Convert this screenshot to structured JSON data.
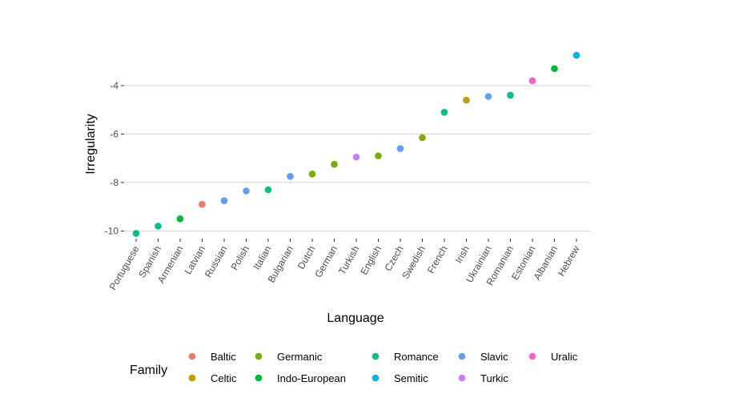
{
  "chart_data": {
    "type": "scatter",
    "xlabel": "Language",
    "ylabel": "Irregularity",
    "ylim": [
      -10.25,
      -2.55
    ],
    "yticks": [
      -10,
      -8,
      -6,
      -4
    ],
    "grid": "horizontal major",
    "legend_placement": "bottom",
    "legend_title": "Family",
    "families": [
      {
        "name": "Baltic",
        "color": "#F8766D"
      },
      {
        "name": "Celtic",
        "color": "#C49A00"
      },
      {
        "name": "Germanic",
        "color": "#7CAE00"
      },
      {
        "name": "Indo-European",
        "color": "#00BA38"
      },
      {
        "name": "Romance",
        "color": "#00C08B"
      },
      {
        "name": "Semitic",
        "color": "#00B4EF"
      },
      {
        "name": "Slavic",
        "color": "#619CFF"
      },
      {
        "name": "Turkic",
        "color": "#C77CFF"
      },
      {
        "name": "Uralic",
        "color": "#FF61C3"
      }
    ],
    "points": [
      {
        "language": "Portuguese",
        "family": "Romance",
        "irregularity": -10.1
      },
      {
        "language": "Spanish",
        "family": "Romance",
        "irregularity": -9.8
      },
      {
        "language": "Armenian",
        "family": "Indo-European",
        "irregularity": -9.5
      },
      {
        "language": "Latvian",
        "family": "Baltic",
        "irregularity": -8.9
      },
      {
        "language": "Russian",
        "family": "Slavic",
        "irregularity": -8.75
      },
      {
        "language": "Polish",
        "family": "Slavic",
        "irregularity": -8.35
      },
      {
        "language": "Italian",
        "family": "Romance",
        "irregularity": -8.3
      },
      {
        "language": "Bulgarian",
        "family": "Slavic",
        "irregularity": -7.75
      },
      {
        "language": "Dutch",
        "family": "Germanic",
        "irregularity": -7.65
      },
      {
        "language": "German",
        "family": "Germanic",
        "irregularity": -7.25
      },
      {
        "language": "Turkish",
        "family": "Turkic",
        "irregularity": -6.95
      },
      {
        "language": "English",
        "family": "Germanic",
        "irregularity": -6.9
      },
      {
        "language": "Czech",
        "family": "Slavic",
        "irregularity": -6.6
      },
      {
        "language": "Swedish",
        "family": "Germanic",
        "irregularity": -6.15
      },
      {
        "language": "French",
        "family": "Romance",
        "irregularity": -5.1
      },
      {
        "language": "Irish",
        "family": "Celtic",
        "irregularity": -4.6
      },
      {
        "language": "Ukrainian",
        "family": "Slavic",
        "irregularity": -4.45
      },
      {
        "language": "Romanian",
        "family": "Romance",
        "irregularity": -4.4
      },
      {
        "language": "Estonian",
        "family": "Uralic",
        "irregularity": -3.8
      },
      {
        "language": "Albanian",
        "family": "Indo-European",
        "irregularity": -3.3
      },
      {
        "language": "Hebrew",
        "family": "Semitic",
        "irregularity": -2.75
      }
    ]
  }
}
